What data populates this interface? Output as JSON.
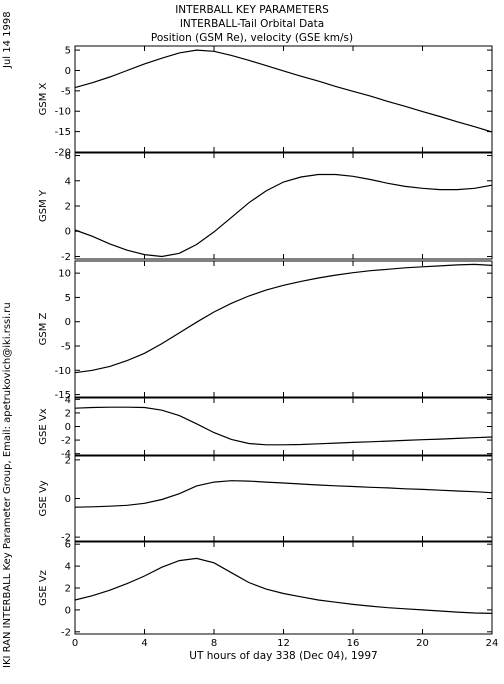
{
  "titles": {
    "line1": "INTERBALL KEY PARAMETERS",
    "line2": "INTERBALL-Tail Orbital Data",
    "line3": "Position (GSM Re), velocity (GSE km/s)"
  },
  "side": {
    "date": "Jul 14 1998",
    "credit": "IKI RAN INTERBALL Key Parameter Group, Email: apetrukovich@iki.rssi.ru"
  },
  "chart_data": {
    "type": "line",
    "xlabel": "UT hours of day 338 (Dec 04), 1997",
    "xlim": [
      0,
      24
    ],
    "xticks": [
      0,
      4,
      8,
      12,
      16,
      20,
      24
    ],
    "panels": [
      {
        "ylabel": "GSM X",
        "ylim": [
          -20,
          6
        ],
        "yticks": [
          5,
          0,
          -5,
          -10,
          -15,
          -20
        ],
        "x": [
          0,
          1,
          2,
          3,
          4,
          5,
          6,
          7,
          8,
          9,
          10,
          11,
          12,
          13,
          14,
          15,
          16,
          17,
          18,
          19,
          20,
          21,
          22,
          23,
          24
        ],
        "y": [
          -4.2,
          -3.0,
          -1.6,
          0.0,
          1.6,
          3.0,
          4.3,
          5.0,
          4.7,
          3.7,
          2.5,
          1.2,
          -0.1,
          -1.4,
          -2.6,
          -3.9,
          -5.1,
          -6.3,
          -7.6,
          -8.8,
          -10.1,
          -11.3,
          -12.6,
          -13.8,
          -15.1
        ]
      },
      {
        "ylabel": "GSM Y",
        "ylim": [
          -2.2,
          6.2
        ],
        "yticks": [
          6,
          4,
          2,
          0,
          -2
        ],
        "x": [
          0,
          1,
          2,
          3,
          4,
          5,
          6,
          7,
          8,
          9,
          10,
          11,
          12,
          13,
          14,
          15,
          16,
          17,
          18,
          19,
          20,
          21,
          22,
          23,
          24
        ],
        "y": [
          0.1,
          -0.4,
          -1.0,
          -1.5,
          -1.85,
          -2.0,
          -1.75,
          -1.05,
          -0.05,
          1.1,
          2.25,
          3.2,
          3.9,
          4.3,
          4.5,
          4.5,
          4.35,
          4.1,
          3.8,
          3.55,
          3.4,
          3.3,
          3.3,
          3.4,
          3.65
        ]
      },
      {
        "ylabel": "GSM Z",
        "ylim": [
          -15.5,
          12.5
        ],
        "yticks": [
          10,
          5,
          0,
          -5,
          -10,
          -15
        ],
        "x": [
          0,
          1,
          2,
          3,
          4,
          5,
          6,
          7,
          8,
          9,
          10,
          11,
          12,
          13,
          14,
          15,
          16,
          17,
          18,
          19,
          20,
          21,
          22,
          23,
          24
        ],
        "y": [
          -10.5,
          -10.0,
          -9.2,
          -8.0,
          -6.5,
          -4.5,
          -2.3,
          -0.1,
          2.0,
          3.8,
          5.3,
          6.5,
          7.5,
          8.3,
          9.0,
          9.6,
          10.1,
          10.5,
          10.8,
          11.1,
          11.3,
          11.5,
          11.7,
          11.8,
          11.6
        ]
      },
      {
        "ylabel": "GSE Vx",
        "ylim": [
          -4.2,
          4.2
        ],
        "yticks": [
          4,
          2,
          0,
          -2,
          -4
        ],
        "x": [
          0,
          1,
          2,
          3,
          4,
          5,
          6,
          7,
          8,
          9,
          10,
          11,
          12,
          13,
          14,
          15,
          16,
          17,
          18,
          19,
          20,
          21,
          22,
          23,
          24
        ],
        "y": [
          2.7,
          2.8,
          2.85,
          2.85,
          2.8,
          2.4,
          1.6,
          0.4,
          -0.9,
          -1.9,
          -2.5,
          -2.7,
          -2.7,
          -2.65,
          -2.55,
          -2.45,
          -2.35,
          -2.25,
          -2.15,
          -2.05,
          -1.95,
          -1.85,
          -1.75,
          -1.65,
          -1.55
        ]
      },
      {
        "ylabel": "GSE Vy",
        "ylim": [
          -2.2,
          2.2
        ],
        "yticks": [
          2,
          0,
          -2
        ],
        "x": [
          0,
          1,
          2,
          3,
          4,
          5,
          6,
          7,
          8,
          9,
          10,
          11,
          12,
          13,
          14,
          15,
          16,
          17,
          18,
          19,
          20,
          21,
          22,
          23,
          24
        ],
        "y": [
          -0.45,
          -0.43,
          -0.4,
          -0.35,
          -0.25,
          -0.05,
          0.25,
          0.65,
          0.85,
          0.92,
          0.9,
          0.85,
          0.8,
          0.75,
          0.7,
          0.66,
          0.62,
          0.58,
          0.55,
          0.5,
          0.47,
          0.43,
          0.39,
          0.35,
          0.3
        ]
      },
      {
        "ylabel": "GSE Vz",
        "ylim": [
          -2.2,
          6.2
        ],
        "yticks": [
          6,
          4,
          2,
          0,
          -2
        ],
        "x": [
          0,
          1,
          2,
          3,
          4,
          5,
          6,
          7,
          8,
          9,
          10,
          11,
          12,
          13,
          14,
          15,
          16,
          17,
          18,
          19,
          20,
          21,
          22,
          23,
          24
        ],
        "y": [
          0.9,
          1.3,
          1.8,
          2.4,
          3.1,
          3.9,
          4.5,
          4.7,
          4.3,
          3.4,
          2.5,
          1.9,
          1.5,
          1.2,
          0.9,
          0.7,
          0.5,
          0.35,
          0.2,
          0.1,
          0.0,
          -0.1,
          -0.2,
          -0.28,
          -0.32
        ]
      }
    ]
  }
}
